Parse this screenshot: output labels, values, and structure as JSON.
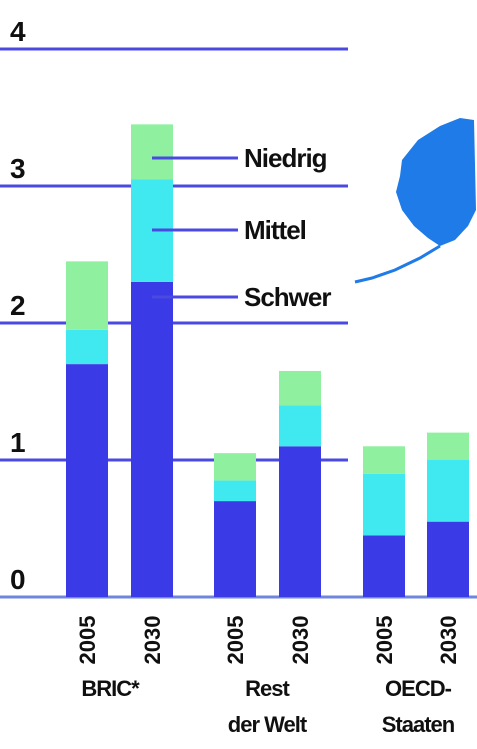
{
  "chart_data": {
    "type": "bar",
    "stacked": true,
    "title": "",
    "xlabel": "",
    "ylabel": "",
    "ylim": [
      0,
      4
    ],
    "y_ticks": [
      "0",
      "1",
      "2",
      "3",
      "4"
    ],
    "grid": true,
    "groups": [
      {
        "label_lines": [
          "BRIC*"
        ],
        "categories": [
          "2005",
          "2030"
        ]
      },
      {
        "label_lines": [
          "Rest",
          "der Welt"
        ],
        "categories": [
          "2005",
          "2030"
        ]
      },
      {
        "label_lines": [
          "OECD-",
          "Staaten"
        ],
        "categories": [
          "2005",
          "2030"
        ]
      }
    ],
    "categories": [
      "2005",
      "2030",
      "2005",
      "2030",
      "2005",
      "2030"
    ],
    "series": [
      {
        "name": "Schwer",
        "color": "#3a3ae6",
        "values": [
          1.7,
          2.3,
          0.7,
          1.1,
          0.45,
          0.55
        ]
      },
      {
        "name": "Mittel",
        "color": "#40e8f0",
        "values": [
          0.25,
          0.75,
          0.15,
          0.3,
          0.45,
          0.45
        ]
      },
      {
        "name": "Niedrig",
        "color": "#8ff0a0",
        "values": [
          0.5,
          0.4,
          0.2,
          0.25,
          0.2,
          0.2
        ]
      }
    ],
    "legend_placement": "inline-right",
    "colors": {
      "grid": "#4a4ae0",
      "map": "#1f7be8"
    }
  }
}
